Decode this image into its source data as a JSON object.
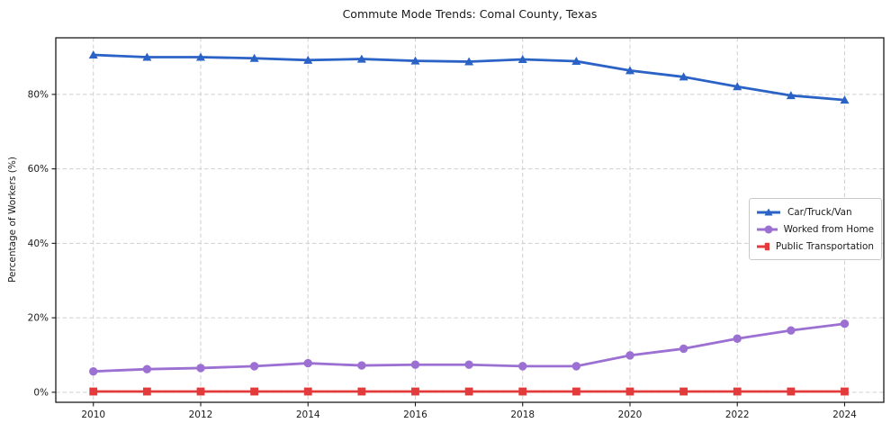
{
  "chart_data": {
    "type": "line",
    "title": "Commute Mode Trends: Comal County, Texas",
    "xlabel": "",
    "ylabel": "Percentage of Workers (%)",
    "x": [
      2010,
      2011,
      2012,
      2013,
      2014,
      2015,
      2016,
      2017,
      2018,
      2019,
      2020,
      2021,
      2022,
      2023,
      2024
    ],
    "series": [
      {
        "name": "Car/Truck/Van",
        "color": "#2b62c6",
        "marker": "triangle",
        "values": [
          90.6,
          90.0,
          90.0,
          89.7,
          89.2,
          89.5,
          89.0,
          88.8,
          89.4,
          88.9,
          86.4,
          84.7,
          82.1,
          79.7,
          78.5
        ]
      },
      {
        "name": "Worked from Home",
        "color": "#9b70d2",
        "marker": "circle",
        "values": [
          5.6,
          6.2,
          6.5,
          7.0,
          7.8,
          7.2,
          7.4,
          7.4,
          7.0,
          7.0,
          9.9,
          11.7,
          14.4,
          16.6,
          18.4
        ]
      },
      {
        "name": "Public Transportation",
        "color": "#e33b3b",
        "marker": "square",
        "values": [
          0.2,
          0.2,
          0.2,
          0.2,
          0.2,
          0.2,
          0.2,
          0.2,
          0.2,
          0.2,
          0.2,
          0.2,
          0.2,
          0.2,
          0.2
        ]
      }
    ],
    "xticks": {
      "values": [
        2010,
        2012,
        2014,
        2016,
        2018,
        2020,
        2022,
        2024
      ],
      "labels": [
        "2010",
        "2012",
        "2014",
        "2016",
        "2018",
        "2020",
        "2022",
        "2024"
      ]
    },
    "yticks": {
      "values": [
        0,
        20,
        40,
        60,
        80
      ],
      "labels": [
        "0%",
        "20%",
        "40%",
        "60%",
        "80%"
      ]
    },
    "xlim": [
      2009.3,
      2024.73
    ],
    "ylim": [
      -2.7,
      95.2
    ],
    "grid": true,
    "legend_position": "center right",
    "colors": {
      "grid": "#cfcfcf",
      "spine": "#1a1a1a",
      "tick_text": "#1a1a1a",
      "background": "#ffffff"
    }
  }
}
